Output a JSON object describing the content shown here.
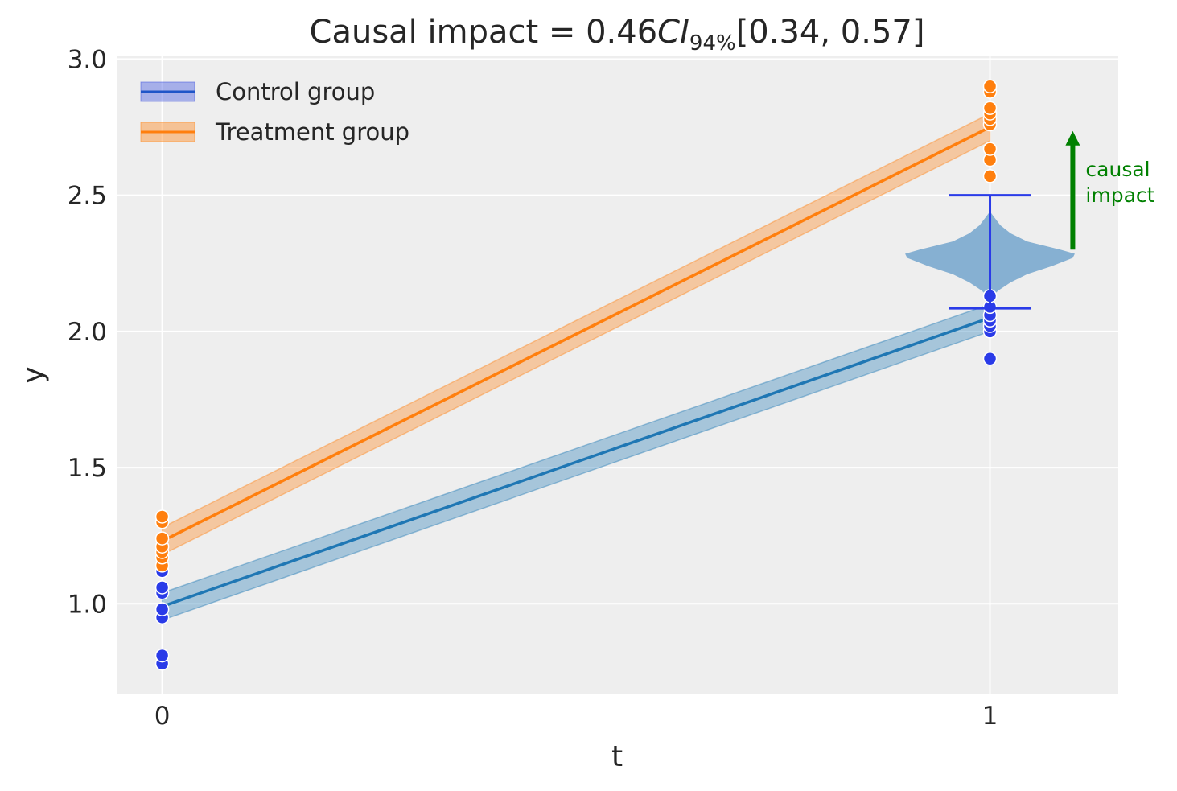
{
  "chart_data": {
    "type": "scatter",
    "title": {
      "prefix": "Causal impact = 0.46",
      "ci_symbol": "CI",
      "ci_subscript": "94%",
      "ci_interval": "[0.34, 0.57]"
    },
    "xlabel": "t",
    "ylabel": "y",
    "xlim": [
      -0.055,
      1.155
    ],
    "ylim": [
      0.67,
      3.01
    ],
    "x_ticks": [
      0,
      1
    ],
    "x_tick_labels": [
      "0",
      "1"
    ],
    "y_ticks": [
      1.0,
      1.5,
      2.0,
      2.5,
      3.0
    ],
    "y_tick_labels": [
      "1.0",
      "1.5",
      "2.0",
      "2.5",
      "3.0"
    ],
    "grid": true,
    "legend_position": "top-left",
    "series": [
      {
        "name": "Control group",
        "color": "#1f77b4",
        "point_color": "#2a3be8",
        "line": {
          "x": [
            0,
            1
          ],
          "y": [
            0.99,
            2.05
          ]
        },
        "band": {
          "x": [
            0,
            1
          ],
          "lower": [
            0.94,
            2.0
          ],
          "upper": [
            1.04,
            2.1
          ]
        },
        "points": [
          [
            0,
            0.78
          ],
          [
            0,
            0.81
          ],
          [
            0,
            0.95
          ],
          [
            0,
            0.98
          ],
          [
            0,
            1.04
          ],
          [
            0,
            1.06
          ],
          [
            0,
            1.12
          ],
          [
            1,
            1.9
          ],
          [
            1,
            2.0
          ],
          [
            1,
            2.02
          ],
          [
            1,
            2.04
          ],
          [
            1,
            2.06
          ],
          [
            1,
            2.09
          ],
          [
            1,
            2.13
          ]
        ]
      },
      {
        "name": "Treatment group",
        "color": "#ff7f0e",
        "point_color": "#ff7f0e",
        "line": {
          "x": [
            0,
            1
          ],
          "y": [
            1.23,
            2.75
          ]
        },
        "band": {
          "x": [
            0,
            1
          ],
          "lower": [
            1.18,
            2.7
          ],
          "upper": [
            1.28,
            2.8
          ]
        },
        "points": [
          [
            0,
            1.14
          ],
          [
            0,
            1.17
          ],
          [
            0,
            1.19
          ],
          [
            0,
            1.21
          ],
          [
            0,
            1.24
          ],
          [
            0,
            1.3
          ],
          [
            0,
            1.32
          ],
          [
            1,
            2.57
          ],
          [
            1,
            2.63
          ],
          [
            1,
            2.67
          ],
          [
            1,
            2.76
          ],
          [
            1,
            2.78
          ],
          [
            1,
            2.8
          ],
          [
            1,
            2.82
          ],
          [
            1,
            2.88
          ],
          [
            1,
            2.9
          ]
        ]
      }
    ],
    "counterfactual_violin": {
      "x": 1,
      "color": "#86b0d2",
      "errorbar_color": "#2a3be8",
      "errorbar_low": 2.085,
      "errorbar_high": 2.5,
      "mode": 2.285,
      "profile": [
        [
          2.12,
          0.0
        ],
        [
          2.15,
          0.02
        ],
        [
          2.18,
          0.05
        ],
        [
          2.21,
          0.09
        ],
        [
          2.24,
          0.15
        ],
        [
          2.27,
          0.2
        ],
        [
          2.285,
          0.205
        ],
        [
          2.3,
          0.17
        ],
        [
          2.33,
          0.09
        ],
        [
          2.36,
          0.05
        ],
        [
          2.39,
          0.025
        ],
        [
          2.42,
          0.01
        ],
        [
          2.44,
          0.0
        ]
      ]
    },
    "causal_impact_arrow": {
      "x": 1.1,
      "y_start": 2.3,
      "y_end": 2.73,
      "color": "#008000",
      "label_line1": "causal",
      "label_line2": "impact"
    }
  }
}
